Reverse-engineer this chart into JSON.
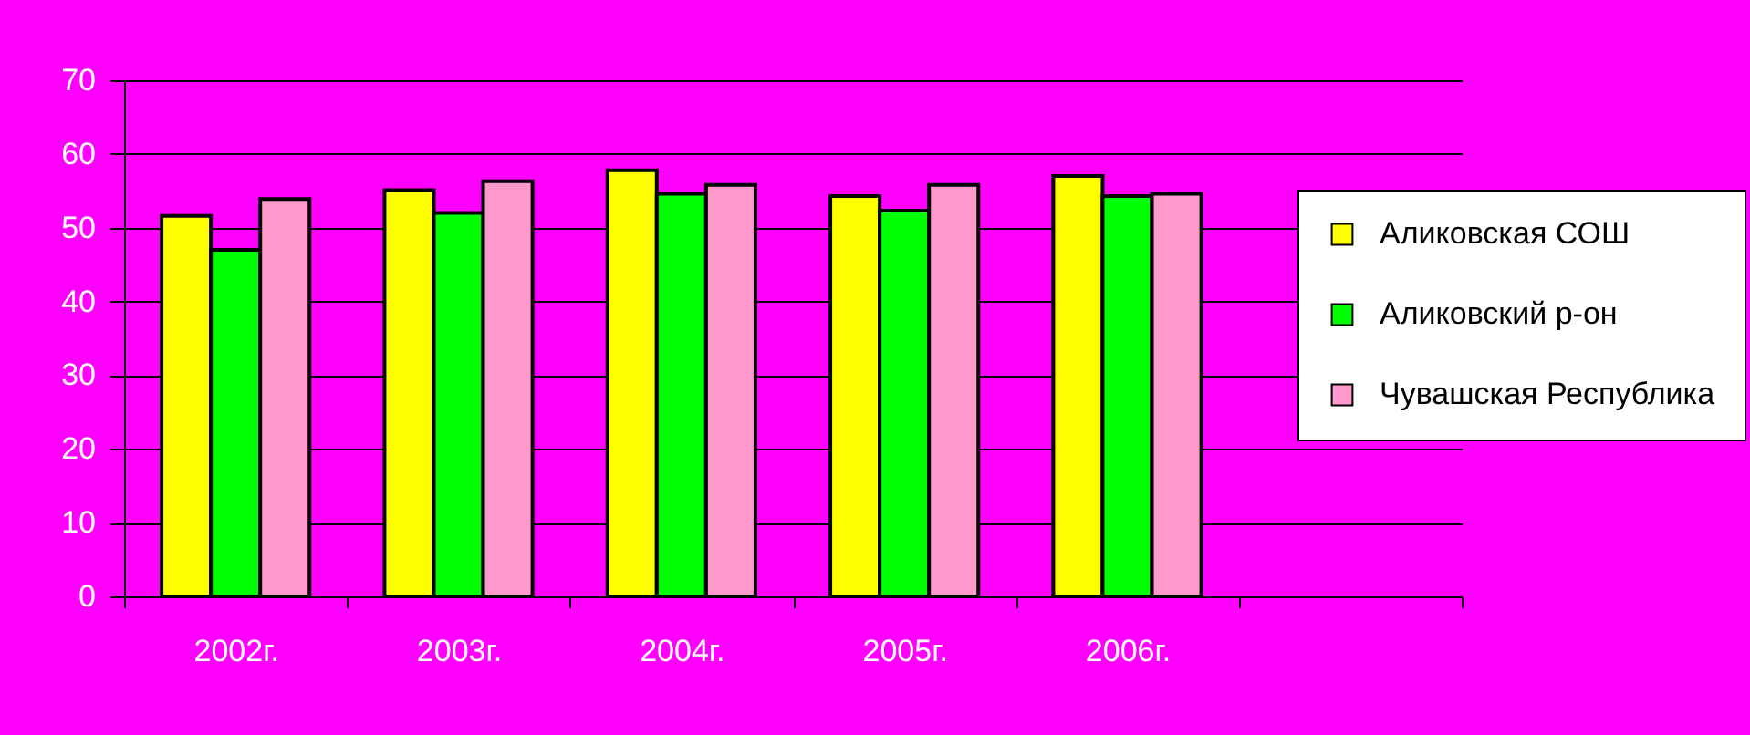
{
  "chart_data": {
    "type": "bar",
    "categories": [
      "2002г.",
      "2003г.",
      "2004г.",
      "2005г.",
      "2006г.",
      null
    ],
    "series": [
      {
        "name": "Аликовская СОШ",
        "color": "#ffff00",
        "values": [
          51.6,
          55.1,
          57.8,
          54.3,
          57.0,
          null
        ]
      },
      {
        "name": "Аликовский р-он",
        "color": "#00ff00",
        "values": [
          47.0,
          52.0,
          54.6,
          52.3,
          54.3,
          null
        ]
      },
      {
        "name": "Чувашская Республика",
        "color": "#ff99cc",
        "values": [
          53.9,
          56.3,
          55.8,
          55.8,
          54.6,
          null
        ]
      }
    ],
    "ylim": [
      0,
      70
    ],
    "yticks": [
      0,
      10,
      20,
      30,
      40,
      50,
      60,
      70
    ],
    "grid": "y",
    "legend": "right"
  }
}
